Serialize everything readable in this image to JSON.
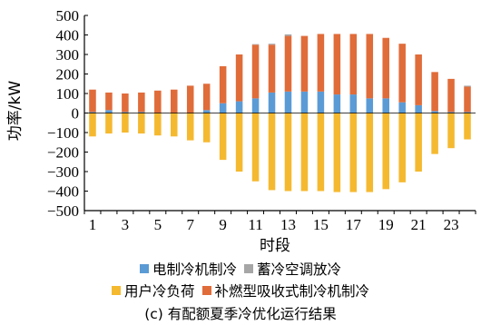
{
  "chart_data": {
    "type": "bar",
    "ylabel": "功率/kW",
    "xlabel": "时段",
    "ylim": [
      -500,
      500
    ],
    "yticks": [
      500,
      400,
      300,
      200,
      100,
      0,
      -100,
      -200,
      -300,
      -400,
      -500
    ],
    "x": [
      1,
      2,
      3,
      4,
      5,
      6,
      7,
      8,
      9,
      10,
      11,
      12,
      13,
      14,
      15,
      16,
      17,
      18,
      19,
      20,
      21,
      22,
      23,
      24
    ],
    "xtick_labels": [
      "1",
      "3",
      "5",
      "7",
      "9",
      "11",
      "13",
      "15",
      "17",
      "19",
      "21",
      "23"
    ],
    "grid": false,
    "legend_position": "bottom",
    "series": [
      {
        "name": "电制冷机制冷",
        "color": "#5b9bd5",
        "stack": "positive",
        "values": [
          5,
          15,
          5,
          5,
          0,
          0,
          0,
          15,
          50,
          60,
          75,
          105,
          110,
          110,
          110,
          95,
          95,
          75,
          75,
          55,
          40,
          10,
          5,
          5
        ]
      },
      {
        "name": "补燃型吸收式制冷机制冷",
        "color": "#e06c3a",
        "stack": "positive",
        "values": [
          115,
          90,
          95,
          100,
          115,
          120,
          140,
          135,
          190,
          240,
          275,
          245,
          285,
          285,
          295,
          310,
          310,
          330,
          310,
          300,
          260,
          200,
          170,
          130
        ]
      },
      {
        "name": "蓄冷空调放冷",
        "color": "#a6a6a6",
        "stack": "positive",
        "values": [
          0,
          0,
          0,
          0,
          0,
          0,
          0,
          0,
          0,
          0,
          3,
          5,
          8,
          0,
          0,
          0,
          0,
          0,
          0,
          0,
          0,
          0,
          0,
          5
        ]
      },
      {
        "name": "用户冷负荷",
        "color": "#f5b930",
        "stack": "negative",
        "values": [
          -120,
          -105,
          -100,
          -105,
          -115,
          -120,
          -140,
          -150,
          -240,
          -300,
          -350,
          -395,
          -400,
          -400,
          -400,
          -405,
          -405,
          -405,
          -390,
          -355,
          -300,
          -210,
          -180,
          -135
        ]
      }
    ]
  },
  "legend": {
    "row1": [
      {
        "label": "电制冷机制冷",
        "color": "#5b9bd5"
      },
      {
        "label": "蓄冷空调放冷",
        "color": "#a6a6a6"
      }
    ],
    "row2": [
      {
        "label": "用户冷负荷",
        "color": "#f5b930"
      },
      {
        "label": "补燃型吸收式制冷机制冷",
        "color": "#e06c3a"
      }
    ]
  },
  "caption": "(c) 有配额夏季冷优化运行结果"
}
